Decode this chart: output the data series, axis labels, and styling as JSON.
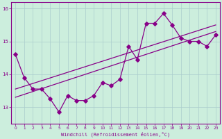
{
  "xlabel": "Windchill (Refroidissement éolien,°C)",
  "background_color": "#cceedd",
  "grid_color": "#aacccc",
  "line_color": "#880088",
  "xlim": [
    -0.5,
    23.5
  ],
  "ylim": [
    12.5,
    16.2
  ],
  "yticks": [
    13,
    14,
    15,
    16
  ],
  "xticks": [
    0,
    1,
    2,
    3,
    4,
    5,
    6,
    7,
    8,
    9,
    10,
    11,
    12,
    13,
    14,
    15,
    16,
    17,
    18,
    19,
    20,
    21,
    22,
    23
  ],
  "series1_x": [
    0,
    1,
    2,
    3,
    4,
    5,
    6,
    7,
    8,
    9,
    10,
    11,
    12,
    13,
    14,
    15,
    16,
    17,
    18,
    19,
    20,
    21,
    22,
    23
  ],
  "series1_y": [
    14.6,
    13.9,
    13.55,
    13.55,
    13.25,
    12.85,
    13.35,
    13.2,
    13.2,
    13.35,
    13.75,
    13.65,
    13.85,
    14.85,
    14.45,
    15.55,
    15.55,
    15.85,
    15.5,
    15.1,
    15.0,
    15.0,
    14.85,
    15.2
  ],
  "trend1_x": [
    0,
    23
  ],
  "trend1_y": [
    13.3,
    15.3
  ],
  "trend2_x": [
    0,
    23
  ],
  "trend2_y": [
    13.55,
    15.5
  ]
}
